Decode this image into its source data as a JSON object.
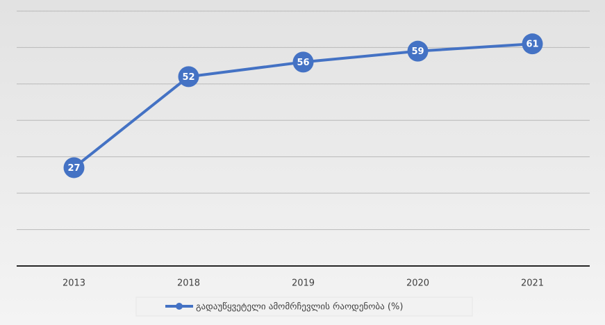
{
  "chart_data": {
    "type": "line",
    "categories": [
      "2013",
      "2018",
      "2019",
      "2020",
      "2021"
    ],
    "series": [
      {
        "name": "გადაუწყვეტელი ამომრჩევლის რაოდენობა (%)",
        "color": "#4472c4",
        "values": [
          27,
          52,
          56,
          59,
          61
        ]
      }
    ],
    "ylim": [
      0,
      70
    ],
    "yticks": [
      0,
      10,
      20,
      30,
      40,
      50,
      60,
      70
    ],
    "grid": true,
    "legend": "bottom",
    "data_labels": true
  }
}
